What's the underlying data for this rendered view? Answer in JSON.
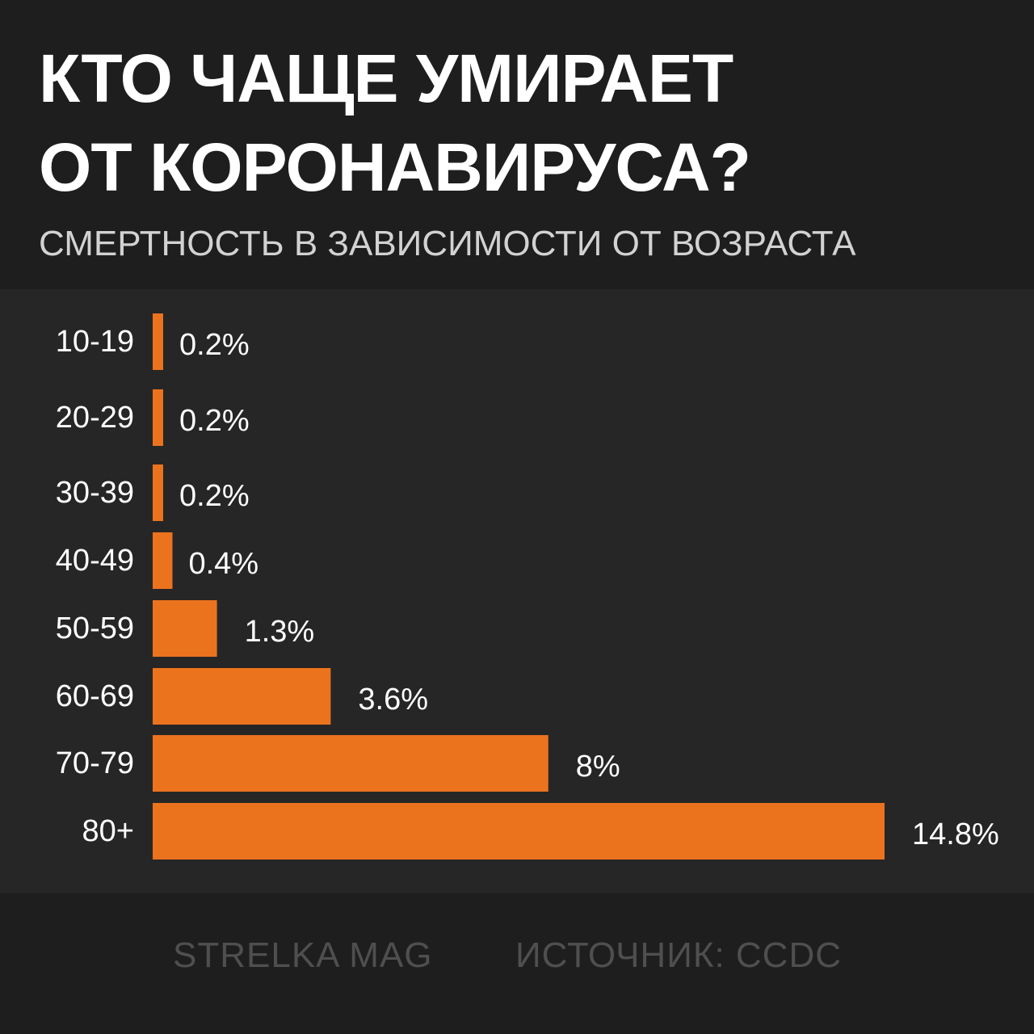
{
  "header": {
    "title_line1": "КТО ЧАЩЕ УМИРАЕТ",
    "title_line2": "ОТ КОРОНАВИРУСА?",
    "subtitle": "СМЕРТНОСТЬ В ЗАВИСИМОСТИ ОТ ВОЗРАСТА"
  },
  "footer": {
    "brand": "STRELKA MAG",
    "source": "ИСТОЧНИК: CCDC"
  },
  "colors": {
    "background": "#1e1e1e",
    "panel": "#262626",
    "bar": "#ec731e",
    "text": "#ffffff",
    "muted": "#4f4f4f"
  },
  "chart_data": {
    "type": "bar",
    "orientation": "horizontal",
    "title": "КТО ЧАЩЕ УМИРАЕТ ОТ КОРОНАВИРУСА?",
    "subtitle": "СМЕРТНОСТЬ В ЗАВИСИМОСТИ ОТ ВОЗРАСТА",
    "categories": [
      "10-19",
      "20-29",
      "30-39",
      "40-49",
      "50-59",
      "60-69",
      "70-79",
      "80+"
    ],
    "values": [
      0.2,
      0.2,
      0.2,
      0.4,
      1.3,
      3.6,
      8,
      14.8
    ],
    "value_labels": [
      "0.2%",
      "0.2%",
      "0.2%",
      "0.4%",
      "1.3%",
      "3.6%",
      "8%",
      "14.8%"
    ],
    "unit": "%",
    "xlim": [
      0,
      14.8
    ],
    "grid": false,
    "legend": "none"
  }
}
